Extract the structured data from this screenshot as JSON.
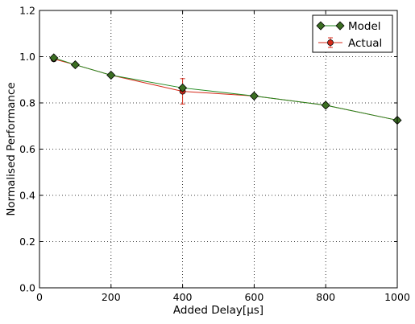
{
  "chart_data": {
    "type": "line",
    "xlabel": "Added Delay[μs]",
    "ylabel": "Normalised Performance",
    "xlim": [
      0,
      1000
    ],
    "ylim": [
      0.0,
      1.2
    ],
    "xticks": [
      0,
      200,
      400,
      600,
      800,
      1000
    ],
    "xtick_labels": [
      "0",
      "200",
      "400",
      "600",
      "800",
      "1000"
    ],
    "yticks": [
      0.0,
      0.2,
      0.4,
      0.6,
      0.8,
      1.0,
      1.2
    ],
    "ytick_labels": [
      "0.0",
      "0.2",
      "0.4",
      "0.6",
      "0.8",
      "1.0",
      "1.2"
    ],
    "grid": true,
    "legend_position": "top-right",
    "series": [
      {
        "name": "Model",
        "color": "#1f8a1f",
        "marker": "diamond",
        "marker_color": "#3b6e22",
        "x": [
          40,
          100,
          200,
          400,
          600,
          800,
          1000
        ],
        "y": [
          0.995,
          0.965,
          0.92,
          0.865,
          0.83,
          0.79,
          0.725
        ]
      },
      {
        "name": "Actual",
        "color": "#d62a1a",
        "marker": "circle",
        "marker_color": "#d62a1a",
        "x": [
          40,
          100,
          200,
          400,
          600,
          800,
          1000
        ],
        "y": [
          0.99,
          0.965,
          0.92,
          0.85,
          0.83,
          0.79,
          0.725
        ],
        "yerr": [
          0.008,
          0.005,
          0.004,
          0.055,
          0.004,
          0.004,
          0.004
        ]
      }
    ]
  }
}
